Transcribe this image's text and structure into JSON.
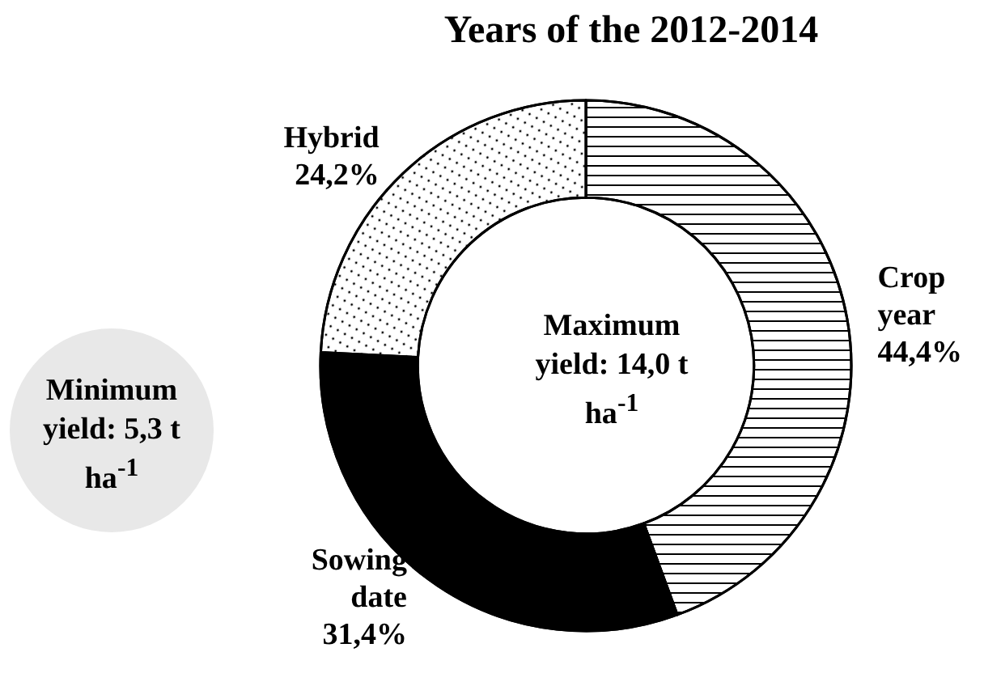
{
  "chart_data": {
    "type": "donut",
    "title": "Years of the 2012-2014",
    "categories": [
      "Crop year",
      "Sowing date",
      "Hybrid"
    ],
    "values": [
      44.4,
      31.4,
      24.2
    ],
    "value_labels": [
      "44,4%",
      "31,4%",
      "24,2%"
    ],
    "colors": [
      "#ffffff",
      "#000000",
      "#ffffff"
    ],
    "legend": false,
    "annotations": [
      "Maximum yield: 14,0 t ha$^{-1}$",
      "Minimum yield: 5,3 t ha$^{-1}$"
    ]
  }
}
